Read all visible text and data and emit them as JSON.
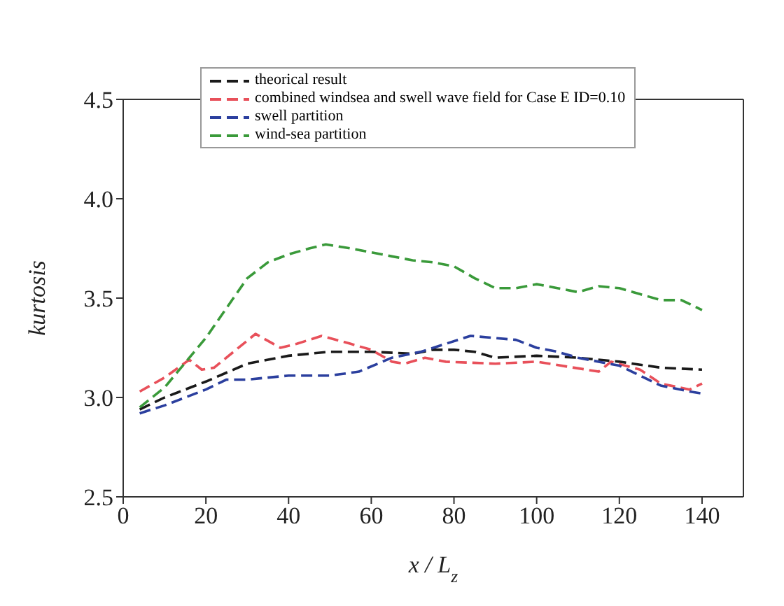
{
  "chart_data": {
    "type": "line",
    "xlabel": "x / L$_{z}$",
    "ylabel": "kurtosis",
    "xlim": [
      0,
      150
    ],
    "xticks": [
      0,
      20,
      40,
      60,
      80,
      100,
      120,
      140
    ],
    "ylim": [
      2.5,
      4.5
    ],
    "yticks": [
      {
        "value": 2.5,
        "label": "2.5"
      },
      {
        "value": 3,
        "label": "3.0"
      },
      {
        "value": 3.5,
        "label": "3.5"
      },
      {
        "value": 4,
        "label": "4.0"
      },
      {
        "value": 4.5,
        "label": "4.5"
      }
    ],
    "legend": "top",
    "marker": "none",
    "line_style": "dashed",
    "series": [
      {
        "name": "theorical result",
        "color": "#1a1a1a",
        "x": [
          4,
          10,
          20,
          30,
          40,
          50,
          60,
          70,
          75,
          80,
          85,
          90,
          100,
          110,
          120,
          130,
          140
        ],
        "values": [
          2.94,
          3.0,
          3.08,
          3.17,
          3.21,
          3.23,
          3.23,
          3.22,
          3.24,
          3.24,
          3.23,
          3.2,
          3.21,
          3.2,
          3.18,
          3.15,
          3.14
        ]
      },
      {
        "name": "combined windsea and swell wave field for Case E ID=0.10",
        "color": "#e8505a",
        "x": [
          4,
          10,
          16,
          19,
          22,
          32,
          38,
          42,
          48,
          55,
          60,
          65,
          68,
          73,
          78,
          90,
          100,
          115,
          118,
          125,
          130,
          137,
          140
        ],
        "values": [
          3.03,
          3.1,
          3.19,
          3.14,
          3.15,
          3.32,
          3.25,
          3.27,
          3.31,
          3.27,
          3.24,
          3.18,
          3.17,
          3.2,
          3.18,
          3.17,
          3.18,
          3.13,
          3.18,
          3.14,
          3.07,
          3.04,
          3.07
        ]
      },
      {
        "name": "swell partition",
        "color": "#2b3f9e",
        "x": [
          4,
          10,
          20,
          25,
          30,
          40,
          50,
          57,
          65,
          72,
          78,
          84,
          95,
          100,
          105,
          110,
          120,
          130,
          137,
          140
        ],
        "values": [
          2.92,
          2.96,
          3.04,
          3.09,
          3.09,
          3.11,
          3.11,
          3.13,
          3.2,
          3.23,
          3.27,
          3.31,
          3.29,
          3.25,
          3.23,
          3.2,
          3.16,
          3.06,
          3.03,
          3.02
        ]
      },
      {
        "name": "wind-sea partition",
        "color": "#3a9a3a",
        "x": [
          4,
          10,
          20,
          25,
          30,
          35,
          40,
          45,
          49,
          55,
          60,
          65,
          70,
          75,
          80,
          85,
          90,
          95,
          100,
          105,
          110,
          115,
          120,
          125,
          130,
          135,
          140
        ],
        "values": [
          2.95,
          3.05,
          3.3,
          3.45,
          3.6,
          3.68,
          3.72,
          3.75,
          3.77,
          3.75,
          3.73,
          3.71,
          3.69,
          3.68,
          3.66,
          3.6,
          3.55,
          3.55,
          3.57,
          3.55,
          3.53,
          3.56,
          3.55,
          3.52,
          3.49,
          3.49,
          3.44
        ]
      }
    ]
  }
}
